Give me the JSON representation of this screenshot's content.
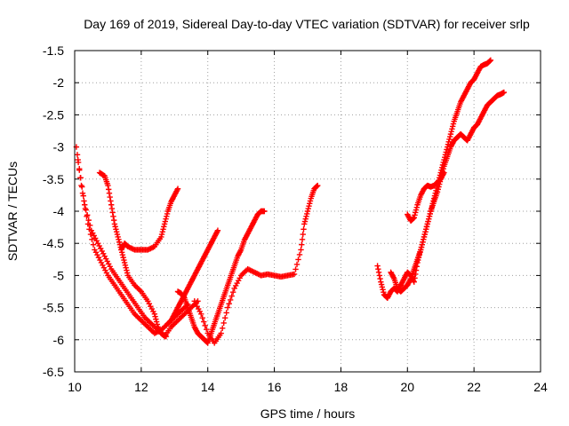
{
  "chart_data": {
    "type": "scatter",
    "title": "Day 169 of 2019, Sidereal Day-to-day VTEC variation (SDTVAR) for receiver srlp",
    "xlabel": "GPS time / hours",
    "ylabel": "SDTVAR / TECUs",
    "xlim": [
      10,
      24
    ],
    "ylim": [
      -6.5,
      -1.5
    ],
    "x_ticks": [
      10,
      12,
      14,
      16,
      18,
      20,
      22,
      24
    ],
    "y_ticks": [
      -1.5,
      -2,
      -2.5,
      -3,
      -3.5,
      -4,
      -4.5,
      -5,
      -5.5,
      -6,
      -6.5
    ],
    "x_tick_labels": [
      "10",
      "12",
      "14",
      "16",
      "18",
      "20",
      "22",
      "24"
    ],
    "y_tick_labels": [
      "-1.5",
      "-2",
      "-2.5",
      "-3",
      "-3.5",
      "-4",
      "-4.5",
      "-5",
      "-5.5",
      "-6",
      "-6.5"
    ],
    "grid": true,
    "marker": "plus",
    "color": "#ff0000",
    "series": [
      {
        "x": [
          10.05,
          10.2,
          10.4,
          10.6,
          10.8,
          11.0,
          11.2,
          11.4,
          11.6,
          11.8,
          12.0,
          12.2,
          12.4,
          12.6,
          12.8,
          13.0,
          13.2,
          13.4
        ],
        "y": [
          -3.0,
          -3.6,
          -4.2,
          -4.6,
          -4.8,
          -5.0,
          -5.15,
          -5.3,
          -5.45,
          -5.6,
          -5.7,
          -5.8,
          -5.9,
          -5.85,
          -5.75,
          -5.65,
          -5.55,
          -5.45
        ]
      },
      {
        "x": [
          10.1,
          10.3,
          10.5,
          10.7,
          10.9,
          11.1,
          11.3,
          11.5,
          11.7,
          11.9,
          12.1,
          12.3,
          12.5,
          12.7,
          12.9,
          13.1,
          13.3,
          13.5,
          13.7
        ],
        "y": [
          -3.2,
          -3.9,
          -4.3,
          -4.5,
          -4.7,
          -4.9,
          -5.05,
          -5.2,
          -5.35,
          -5.5,
          -5.65,
          -5.75,
          -5.85,
          -5.95,
          -5.8,
          -5.7,
          -5.6,
          -5.5,
          -5.4
        ]
      },
      {
        "x": [
          10.75,
          10.9,
          11.0,
          11.1,
          11.2,
          11.3,
          11.4,
          11.5,
          11.6,
          11.8,
          12.0,
          12.2,
          12.4,
          12.5,
          12.6,
          12.75
        ],
        "y": [
          -3.4,
          -3.45,
          -3.6,
          -3.9,
          -4.2,
          -4.4,
          -4.6,
          -4.8,
          -5.0,
          -5.15,
          -5.25,
          -5.4,
          -5.6,
          -5.8,
          -5.9,
          -5.95
        ]
      },
      {
        "x": [
          11.4,
          11.5,
          11.6,
          11.8,
          12.0,
          12.2,
          12.4,
          12.6,
          12.7,
          12.8,
          12.9,
          13.0,
          13.1
        ],
        "y": [
          -4.6,
          -4.5,
          -4.55,
          -4.6,
          -4.6,
          -4.6,
          -4.55,
          -4.4,
          -4.2,
          -4.0,
          -3.85,
          -3.75,
          -3.65
        ]
      },
      {
        "x": [
          13.1,
          13.2,
          13.3,
          13.4,
          13.5,
          13.6,
          13.7,
          13.8,
          13.9,
          14.0,
          14.1,
          14.2,
          14.3,
          14.4,
          14.5,
          14.6,
          14.7,
          14.8,
          14.9,
          15.0,
          15.1,
          15.2,
          15.3,
          15.4,
          15.5,
          15.6,
          15.7
        ],
        "y": [
          -5.25,
          -5.28,
          -5.35,
          -5.5,
          -5.65,
          -5.8,
          -5.9,
          -5.95,
          -6.0,
          -6.05,
          -5.9,
          -5.75,
          -5.6,
          -5.45,
          -5.3,
          -5.15,
          -5.0,
          -4.85,
          -4.7,
          -4.6,
          -4.45,
          -4.35,
          -4.25,
          -4.15,
          -4.05,
          -4.0,
          -4.0
        ]
      },
      {
        "x": [
          12.8,
          12.9,
          13.0,
          13.1,
          13.2,
          13.3,
          13.4,
          13.5,
          13.6,
          13.7,
          13.8,
          13.9,
          14.0,
          14.1,
          14.2,
          14.3
        ],
        "y": [
          -5.75,
          -5.7,
          -5.6,
          -5.5,
          -5.4,
          -5.3,
          -5.2,
          -5.1,
          -5.0,
          -4.9,
          -4.8,
          -4.7,
          -4.6,
          -4.5,
          -4.4,
          -4.3
        ]
      },
      {
        "x": [
          13.6,
          13.8,
          14.0,
          14.2,
          14.4,
          14.6,
          14.8,
          15.0,
          15.2,
          15.4,
          15.6,
          15.8,
          16.0,
          16.2,
          16.4,
          16.6,
          16.8,
          16.9,
          17.0,
          17.1,
          17.2,
          17.3
        ],
        "y": [
          -5.4,
          -5.6,
          -5.9,
          -6.05,
          -5.9,
          -5.5,
          -5.2,
          -5.0,
          -4.9,
          -4.95,
          -5.0,
          -4.98,
          -5.0,
          -5.02,
          -5.0,
          -4.98,
          -4.6,
          -4.2,
          -4.0,
          -3.8,
          -3.65,
          -3.6
        ]
      },
      {
        "x": [
          19.1,
          19.2,
          19.3,
          19.4,
          19.5,
          19.6,
          19.7,
          19.8,
          19.9,
          20.0,
          20.1,
          20.2,
          20.3,
          20.4,
          20.5,
          20.6,
          20.7,
          20.8,
          20.9,
          21.0,
          21.1,
          21.2,
          21.3,
          21.4,
          21.5,
          21.6,
          21.7,
          21.8,
          21.9,
          22.0,
          22.1,
          22.2,
          22.3,
          22.4,
          22.5
        ],
        "y": [
          -4.85,
          -5.1,
          -5.3,
          -5.35,
          -5.25,
          -5.2,
          -5.25,
          -5.15,
          -5.05,
          -4.95,
          -5.0,
          -5.1,
          -4.8,
          -4.6,
          -4.4,
          -4.2,
          -4.0,
          -3.8,
          -3.6,
          -3.4,
          -3.2,
          -3.0,
          -2.8,
          -2.6,
          -2.45,
          -2.3,
          -2.2,
          -2.1,
          -2.0,
          -1.95,
          -1.85,
          -1.75,
          -1.72,
          -1.7,
          -1.65
        ]
      },
      {
        "x": [
          19.5,
          19.6,
          19.7,
          19.8,
          19.9,
          20.0,
          20.1,
          20.2,
          20.3,
          20.4,
          20.5,
          20.6,
          20.7,
          20.8,
          20.9,
          21.0,
          21.1,
          21.2,
          21.3,
          21.4,
          21.5,
          21.6,
          21.7,
          21.8,
          21.9,
          22.0,
          22.1,
          22.2,
          22.3,
          22.4,
          22.5,
          22.6,
          22.7,
          22.8,
          22.9
        ],
        "y": [
          -4.95,
          -5.05,
          -5.2,
          -5.25,
          -5.2,
          -5.15,
          -5.05,
          -4.9,
          -4.75,
          -4.6,
          -4.4,
          -4.2,
          -4.0,
          -3.85,
          -3.7,
          -3.5,
          -3.3,
          -3.15,
          -3.0,
          -2.9,
          -2.85,
          -2.8,
          -2.85,
          -2.9,
          -2.8,
          -2.7,
          -2.65,
          -2.55,
          -2.45,
          -2.35,
          -2.3,
          -2.25,
          -2.2,
          -2.18,
          -2.15
        ]
      },
      {
        "x": [
          20.0,
          20.1,
          20.2,
          20.3,
          20.4,
          20.5,
          20.6,
          20.7,
          20.8,
          20.9,
          21.0,
          21.1
        ],
        "y": [
          -4.05,
          -4.15,
          -4.1,
          -3.9,
          -3.75,
          -3.65,
          -3.6,
          -3.62,
          -3.6,
          -3.55,
          -3.5,
          -3.4
        ]
      }
    ]
  }
}
